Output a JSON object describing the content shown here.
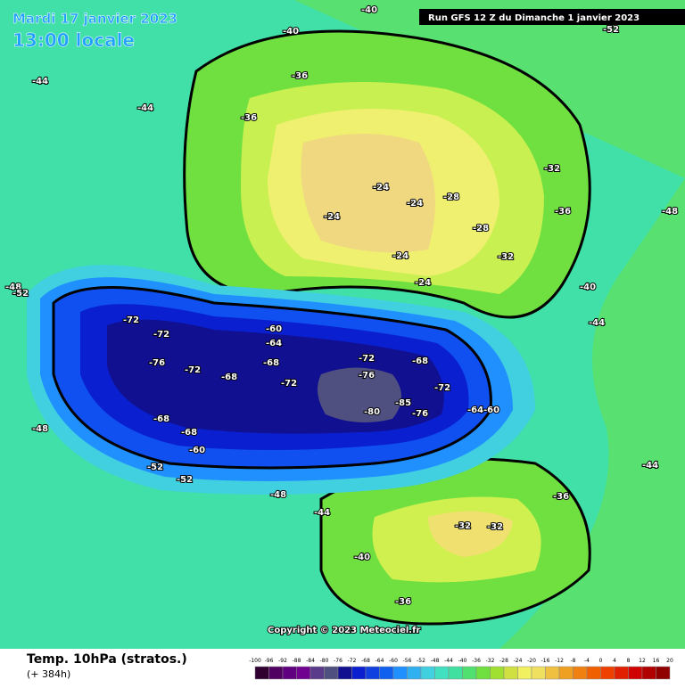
{
  "header": {
    "date": "Mardi 17 janvier 2023",
    "local_time": "13:00 locale",
    "run": "Run GFS 12 Z du Dimanche 1 janvier 2023"
  },
  "map": {
    "contour_labels": [
      -72,
      -72,
      -76,
      -72,
      -68,
      -68,
      -72,
      -72,
      -76,
      -80,
      -85,
      -76,
      -72,
      -68,
      -64,
      -60,
      -68,
      -68,
      -60,
      -52,
      -52,
      -48,
      -48,
      -44,
      -40,
      -36,
      -32,
      -32,
      -36,
      -40,
      -44,
      -36,
      -32,
      -28,
      -24,
      -24,
      -24,
      -24,
      -24,
      -28,
      -32,
      -36,
      -36,
      -40,
      -40,
      -44,
      -44,
      -48,
      -52,
      -44,
      -48,
      -52,
      -60,
      -64
    ],
    "copyright": "Copyright © 2023 Meteociel.fr"
  },
  "footer": {
    "title": "Temp. 10hPa (stratos.)",
    "lead": "(+ 384h)",
    "scale": {
      "labels": [
        -100,
        -96,
        -92,
        -88,
        -84,
        -80,
        -76,
        -72,
        -68,
        -64,
        -60,
        -56,
        -52,
        -48,
        -44,
        -40,
        -36,
        -32,
        -28,
        -24,
        -20,
        -16,
        -12,
        -8,
        -4,
        0,
        4,
        8,
        12,
        16,
        20
      ],
      "colors": [
        "#300030",
        "#500060",
        "#600080",
        "#700090",
        "#5a3a8a",
        "#505080",
        "#101090",
        "#0a20d0",
        "#1040e0",
        "#1060f0",
        "#2090ff",
        "#30b0f0",
        "#40d0e0",
        "#40e0c0",
        "#40e0a0",
        "#50e070",
        "#70e040",
        "#a0e030",
        "#d0e040",
        "#f0f060",
        "#f0e060",
        "#f0c040",
        "#f0a020",
        "#f08010",
        "#f06000",
        "#f04000",
        "#e02000",
        "#d00000",
        "#b00000",
        "#900000"
      ]
    }
  }
}
